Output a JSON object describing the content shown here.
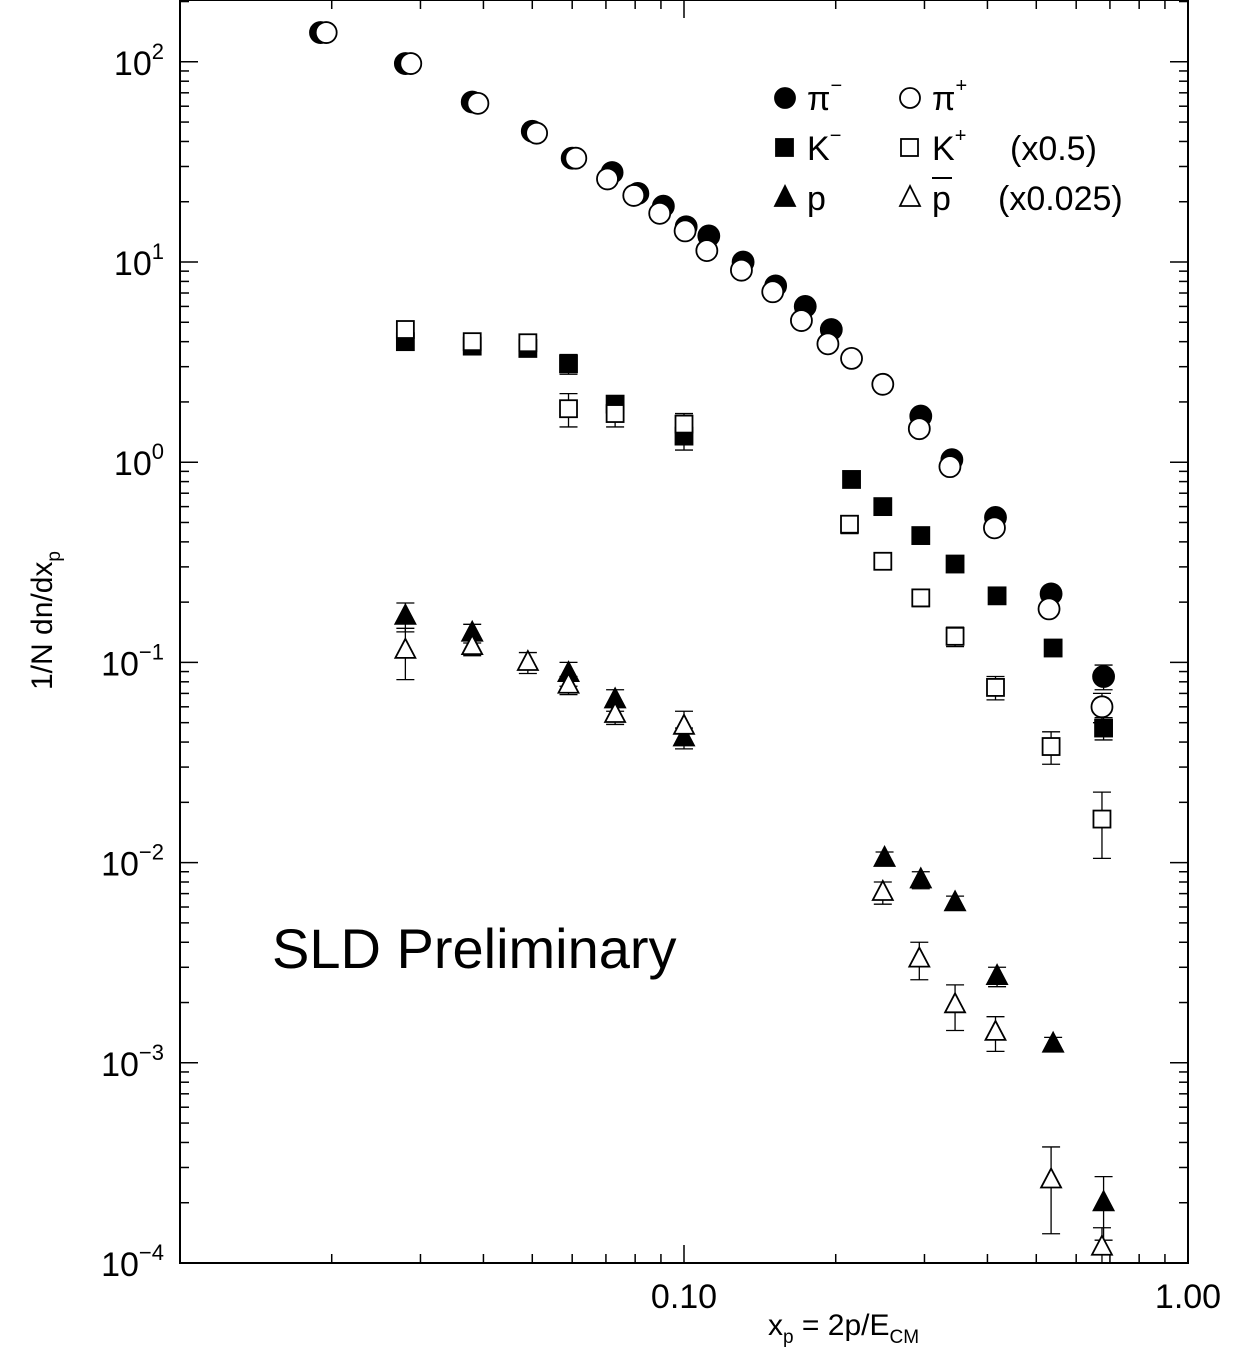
{
  "chart_data": {
    "type": "scatter",
    "x_scale": "log",
    "y_scale": "log",
    "xlim": [
      0.01,
      1.0
    ],
    "ylim": [
      0.0001,
      200
    ],
    "x_ticks": [
      {
        "value": 0.1,
        "label": "0.10"
      },
      {
        "value": 1.0,
        "label": "1.00"
      }
    ],
    "y_ticks": [
      {
        "value": 100,
        "base": "10",
        "exp": "2"
      },
      {
        "value": 10,
        "base": "10",
        "exp": "1"
      },
      {
        "value": 1,
        "base": "10",
        "exp": "0"
      },
      {
        "value": 0.1,
        "base": "10",
        "exp": "−1"
      },
      {
        "value": 0.01,
        "base": "10",
        "exp": "−2"
      },
      {
        "value": 0.001,
        "base": "10",
        "exp": "−3"
      },
      {
        "value": 0.0001,
        "base": "10",
        "exp": "−4"
      }
    ],
    "xlabel": {
      "main": "x",
      "sub": "p",
      "rest": " = 2p/E",
      "sub2": "CM"
    },
    "ylabel": {
      "main": "1/N dn/dx",
      "sub": "p"
    },
    "annotation": "SLD Preliminary",
    "grid": false,
    "legend_position": "top-right",
    "legend": [
      {
        "symbol": "●",
        "name": "π",
        "sup": "−",
        "series": "pi_minus"
      },
      {
        "symbol": "○",
        "name": "π",
        "sup": "+",
        "series": "pi_plus"
      },
      {
        "symbol": "■",
        "name": "K",
        "sup": "−",
        "series": "k_minus"
      },
      {
        "symbol": "□",
        "name": "K",
        "sup": "+",
        "series": "k_plus",
        "note": "(x0.5)"
      },
      {
        "symbol": "▲",
        "name": "p",
        "sup": "",
        "series": "proton"
      },
      {
        "symbol": "△",
        "name": "p",
        "sup": "",
        "bar": true,
        "series": "antiproton",
        "note": "(x0.025)"
      }
    ],
    "series": [
      {
        "id": "pi_minus",
        "marker": "circle",
        "filled": true,
        "points": [
          [
            0.019,
            140
          ],
          [
            0.028,
            98
          ],
          [
            0.038,
            63
          ],
          [
            0.05,
            45
          ],
          [
            0.06,
            33
          ],
          [
            0.072,
            28
          ],
          [
            0.081,
            22
          ],
          [
            0.091,
            19
          ],
          [
            0.101,
            15
          ],
          [
            0.112,
            13.5
          ],
          [
            0.131,
            10
          ],
          [
            0.152,
            7.6
          ],
          [
            0.174,
            6.0
          ],
          [
            0.196,
            4.6
          ],
          [
            0.295,
            1.7
          ],
          [
            0.34,
            1.03
          ],
          [
            0.415,
            0.53
          ],
          [
            0.535,
            0.22
          ],
          [
            0.68,
            0.085
          ]
        ],
        "errors": [
          [
            0.68,
            0.012
          ]
        ]
      },
      {
        "id": "pi_plus",
        "marker": "circle",
        "filled": false,
        "points": [
          [
            0.0195,
            140
          ],
          [
            0.0287,
            98
          ],
          [
            0.039,
            62
          ],
          [
            0.051,
            44
          ],
          [
            0.061,
            33
          ],
          [
            0.0705,
            26
          ],
          [
            0.0795,
            21.5
          ],
          [
            0.0895,
            17.5
          ],
          [
            0.1005,
            14.3
          ],
          [
            0.111,
            11.4
          ],
          [
            0.13,
            9.1
          ],
          [
            0.15,
            7.1
          ],
          [
            0.171,
            5.1
          ],
          [
            0.193,
            3.9
          ],
          [
            0.215,
            3.3
          ],
          [
            0.248,
            2.45
          ],
          [
            0.293,
            1.47
          ],
          [
            0.337,
            0.95
          ],
          [
            0.413,
            0.47
          ],
          [
            0.53,
            0.185
          ],
          [
            0.675,
            0.06
          ]
        ],
        "errors": [
          [
            0.675,
            0.01
          ]
        ]
      },
      {
        "id": "k_minus",
        "marker": "square",
        "filled": true,
        "points": [
          [
            0.028,
            4.0
          ],
          [
            0.038,
            3.8
          ],
          [
            0.049,
            3.7
          ],
          [
            0.059,
            3.1
          ],
          [
            0.073,
            1.95
          ],
          [
            0.1,
            1.35
          ],
          [
            0.215,
            0.82
          ],
          [
            0.248,
            0.6
          ],
          [
            0.295,
            0.43
          ],
          [
            0.345,
            0.31
          ],
          [
            0.418,
            0.215
          ],
          [
            0.54,
            0.118
          ],
          [
            0.68,
            0.047
          ]
        ],
        "errors": [
          [
            0.028,
            0.3
          ],
          [
            0.038,
            0.3
          ],
          [
            0.049,
            0.3
          ],
          [
            0.059,
            0.35
          ],
          [
            0.073,
            0.2
          ],
          [
            0.1,
            0.2
          ],
          [
            0.68,
            0.006
          ]
        ]
      },
      {
        "id": "k_plus",
        "marker": "square",
        "filled": false,
        "points": [
          [
            0.028,
            4.6
          ],
          [
            0.038,
            4.0
          ],
          [
            0.049,
            3.95
          ],
          [
            0.059,
            1.85
          ],
          [
            0.073,
            1.75
          ],
          [
            0.1,
            1.55
          ],
          [
            0.213,
            0.49
          ],
          [
            0.248,
            0.32
          ],
          [
            0.295,
            0.21
          ],
          [
            0.345,
            0.135
          ],
          [
            0.415,
            0.075
          ],
          [
            0.535,
            0.038
          ],
          [
            0.675,
            0.0165
          ]
        ],
        "errors": [
          [
            0.028,
            0.4
          ],
          [
            0.038,
            0.4
          ],
          [
            0.049,
            0.4
          ],
          [
            0.059,
            0.35
          ],
          [
            0.073,
            0.25
          ],
          [
            0.1,
            0.2
          ],
          [
            0.213,
            0.05
          ],
          [
            0.295,
            0.02
          ],
          [
            0.345,
            0.015
          ],
          [
            0.415,
            0.01
          ],
          [
            0.535,
            0.007
          ],
          [
            0.675,
            0.006
          ]
        ]
      },
      {
        "id": "proton",
        "marker": "triangle",
        "filled": true,
        "points": [
          [
            0.028,
            0.17
          ],
          [
            0.038,
            0.14
          ],
          [
            0.059,
            0.088
          ],
          [
            0.073,
            0.065
          ],
          [
            0.1,
            0.042
          ],
          [
            0.25,
            0.0105
          ],
          [
            0.295,
            0.0082
          ],
          [
            0.345,
            0.0063
          ],
          [
            0.418,
            0.0027
          ],
          [
            0.54,
            0.00124
          ],
          [
            0.68,
            0.0002
          ]
        ],
        "errors": [
          [
            0.028,
            0.028
          ],
          [
            0.038,
            0.015
          ],
          [
            0.059,
            0.012
          ],
          [
            0.073,
            0.008
          ],
          [
            0.1,
            0.005
          ],
          [
            0.25,
            0.0008
          ],
          [
            0.295,
            0.0008
          ],
          [
            0.345,
            0.0005
          ],
          [
            0.418,
            0.0003
          ],
          [
            0.54,
            0.0001
          ],
          [
            0.68,
            7e-05
          ]
        ]
      },
      {
        "id": "antiproton",
        "marker": "triangle",
        "filled": false,
        "points": [
          [
            0.028,
            0.115
          ],
          [
            0.038,
            0.12
          ],
          [
            0.049,
            0.1
          ],
          [
            0.059,
            0.077
          ],
          [
            0.073,
            0.055
          ],
          [
            0.1,
            0.048
          ],
          [
            0.248,
            0.0071
          ],
          [
            0.293,
            0.0033
          ],
          [
            0.345,
            0.00195
          ],
          [
            0.415,
            0.00142
          ],
          [
            0.535,
            0.00026
          ],
          [
            0.675,
            0.00012
          ]
        ],
        "errors": [
          [
            0.028,
            0.033
          ],
          [
            0.038,
            0.012
          ],
          [
            0.049,
            0.012
          ],
          [
            0.059,
            0.008
          ],
          [
            0.073,
            0.006
          ],
          [
            0.1,
            0.009
          ],
          [
            0.248,
            0.0009
          ],
          [
            0.293,
            0.0007
          ],
          [
            0.345,
            0.0005
          ],
          [
            0.415,
            0.00028
          ],
          [
            0.535,
            0.00012
          ],
          [
            0.675,
            3e-05
          ]
        ]
      }
    ]
  }
}
